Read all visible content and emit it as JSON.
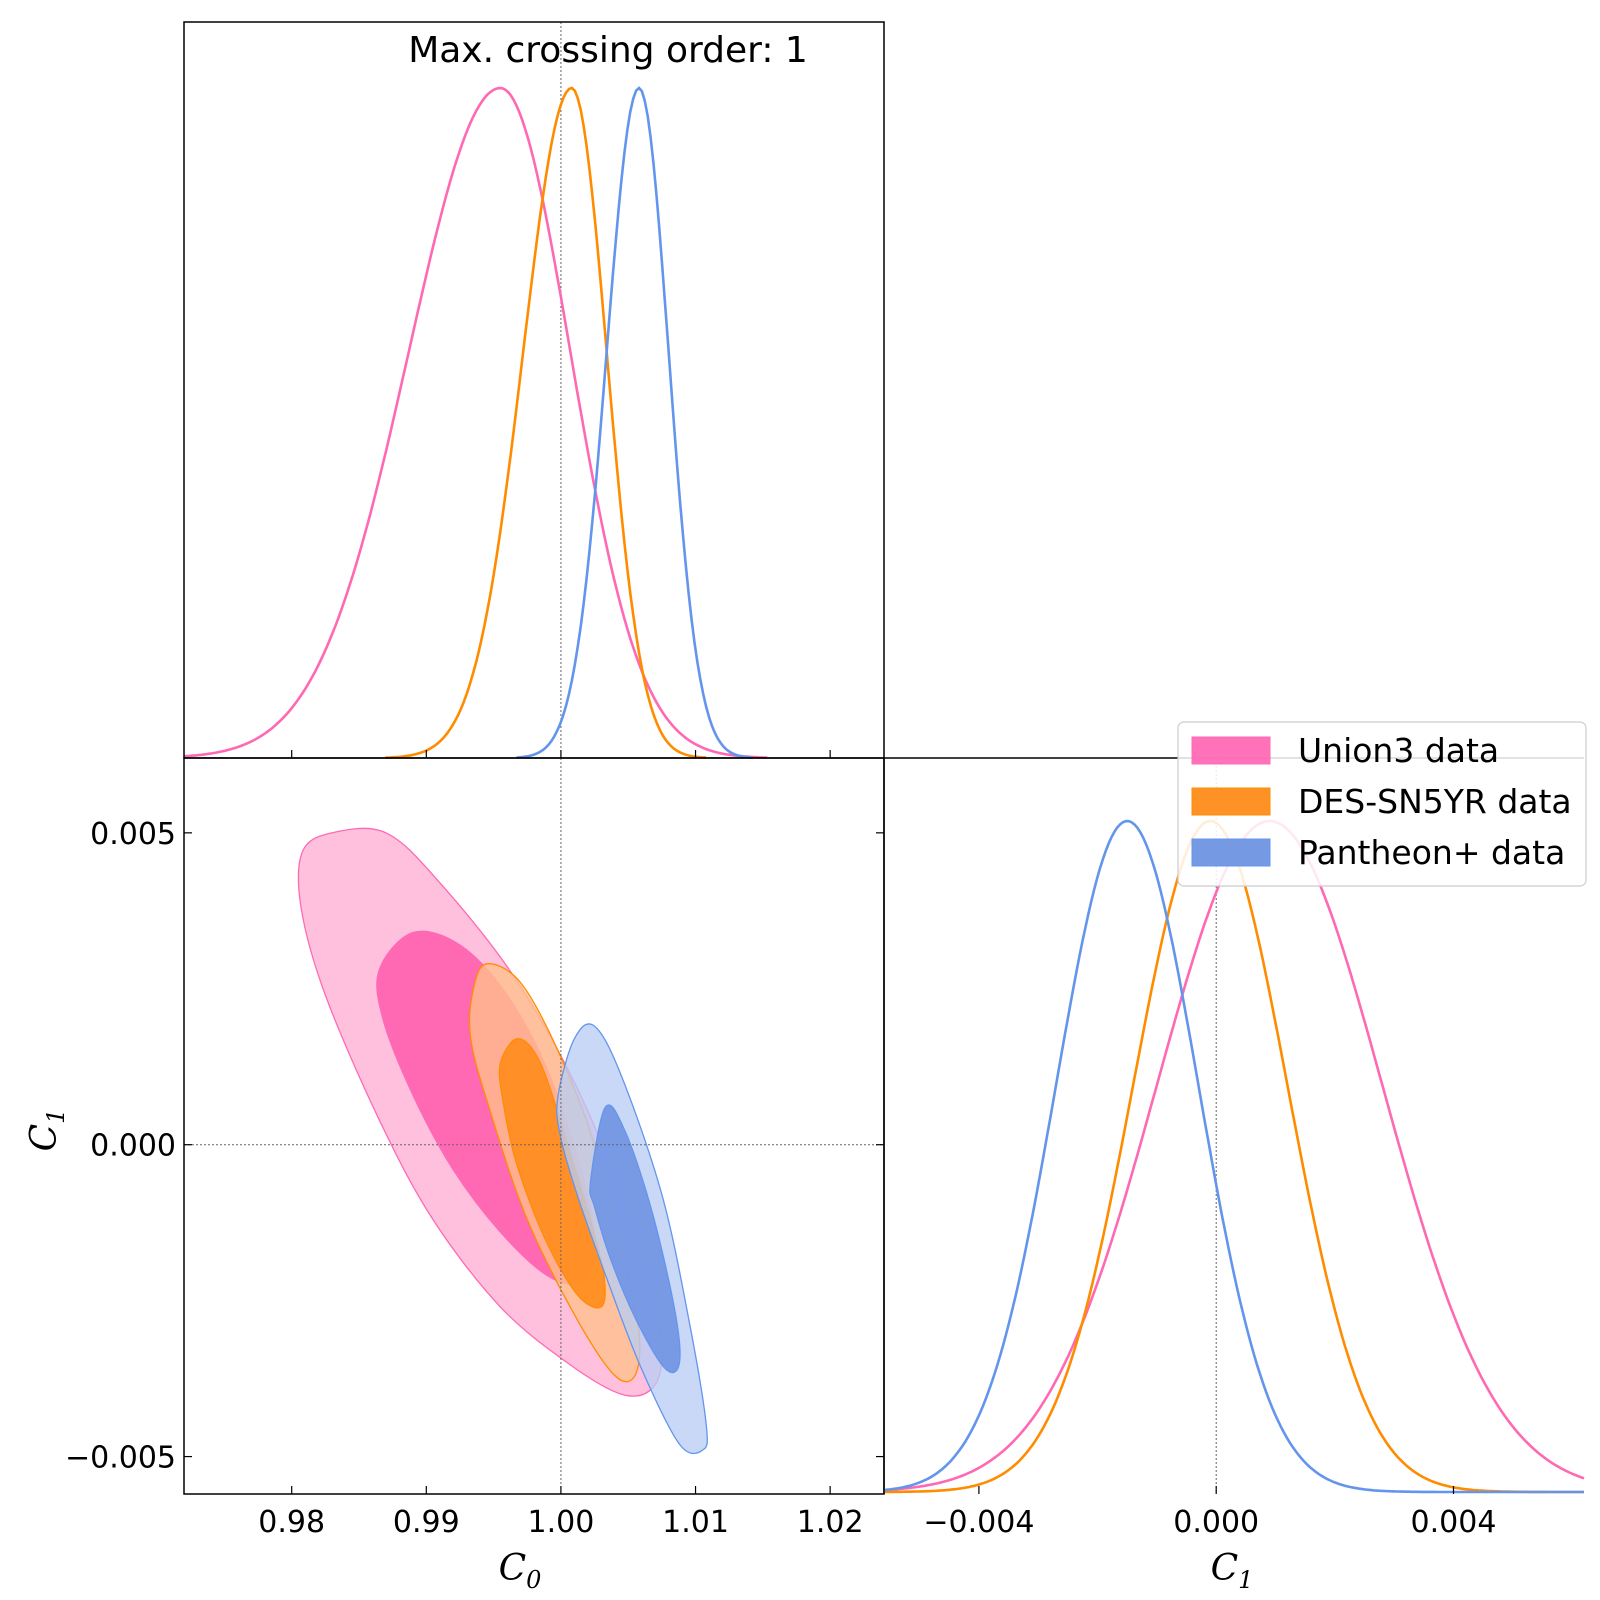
{
  "chart_data": {
    "type": "triangle-corner-plot",
    "title": "Max. crossing order: 1",
    "parameters": [
      "C_0",
      "C_1"
    ],
    "x_axis_labels": {
      "C_0": "C",
      "C_0_sub": "0",
      "C_1": "C",
      "C_1_sub": "1"
    },
    "y_axis_label": {
      "text": "C",
      "sub": "1"
    },
    "reference_values": {
      "C_0": 1.0,
      "C_1": 0.0
    },
    "ranges": {
      "C_0": [
        0.972,
        1.024
      ],
      "C_1": [
        -0.0056,
        0.0062
      ]
    },
    "ticks": {
      "C_0": [
        {
          "v": 0.98,
          "label": "0.98"
        },
        {
          "v": 0.99,
          "label": "0.99"
        },
        {
          "v": 1.0,
          "label": "1.00"
        },
        {
          "v": 1.01,
          "label": "1.01"
        },
        {
          "v": 1.02,
          "label": "1.02"
        }
      ],
      "C_1_y": [
        {
          "v": 0.005,
          "label": "0.005"
        },
        {
          "v": 0.0,
          "label": "0.000"
        },
        {
          "v": -0.005,
          "label": "−0.005"
        }
      ],
      "C_1_x": [
        {
          "v": -0.004,
          "label": "−0.004"
        },
        {
          "v": 0.0,
          "label": "0.000"
        },
        {
          "v": 0.004,
          "label": "0.004"
        }
      ]
    },
    "series": [
      {
        "name": "Union3 data",
        "legend_label": "Union3 data",
        "color": "#ff69b4",
        "fill_inner": "#ff69b4",
        "fill_outer": "#ffc0de",
        "C_0": {
          "mean": 0.9955,
          "sigma_left": 0.0068,
          "sigma_right": 0.0052
        },
        "C_1": {
          "mean": 0.0009,
          "sigma": 0.0019
        },
        "contour_inner": [
          [
            0.9865,
            0.0028
          ],
          [
            0.989,
            0.0034
          ],
          [
            0.9925,
            0.0032
          ],
          [
            0.996,
            0.0024
          ],
          [
            0.999,
            0.0012
          ],
          [
            1.0015,
            -0.0004
          ],
          [
            1.0025,
            -0.0016
          ],
          [
            1.0015,
            -0.0022
          ],
          [
            0.999,
            -0.0021
          ],
          [
            0.9955,
            -0.0014
          ],
          [
            0.992,
            -0.0004
          ],
          [
            0.989,
            0.0008
          ],
          [
            0.9868,
            0.002
          ]
        ],
        "contour_outer": [
          [
            0.9808,
            0.0047
          ],
          [
            0.983,
            0.005
          ],
          [
            0.987,
            0.005
          ],
          [
            0.991,
            0.0042
          ],
          [
            0.9965,
            0.0027
          ],
          [
            1.001,
            0.001
          ],
          [
            1.0045,
            -0.0008
          ],
          [
            1.0065,
            -0.0022
          ],
          [
            1.0075,
            -0.0033
          ],
          [
            1.0068,
            -0.0039
          ],
          [
            1.0045,
            -0.004
          ],
          [
            1.0005,
            -0.0035
          ],
          [
            0.9955,
            -0.0026
          ],
          [
            0.9905,
            -0.0012
          ],
          [
            0.9865,
            0.0004
          ],
          [
            0.9825,
            0.0024
          ],
          [
            0.9807,
            0.0038
          ]
        ]
      },
      {
        "name": "DES-SN5YR data",
        "legend_label": "DES-SN5YR data",
        "color": "#ff8c00",
        "fill_inner": "#ff8c1a",
        "fill_outer": "#ffc28a",
        "C_0": {
          "mean": 1.0008,
          "sigma_left": 0.0036,
          "sigma_right": 0.0026
        },
        "C_1": {
          "mean": -0.0001,
          "sigma": 0.0013
        },
        "contour_inner": [
          [
            0.9955,
            0.0013
          ],
          [
            0.9968,
            0.0017
          ],
          [
            0.9985,
            0.0013
          ],
          [
            1.0005,
            0.0
          ],
          [
            1.0022,
            -0.0012
          ],
          [
            1.0032,
            -0.0021
          ],
          [
            1.003,
            -0.0026
          ],
          [
            1.0012,
            -0.0024
          ],
          [
            0.9988,
            -0.0015
          ],
          [
            0.9967,
            -0.0003
          ],
          [
            0.9957,
            0.0007
          ]
        ],
        "contour_outer": [
          [
            0.9935,
            0.0025
          ],
          [
            0.9945,
            0.0029
          ],
          [
            0.997,
            0.0026
          ],
          [
            0.9998,
            0.0015
          ],
          [
            1.0025,
            0.0
          ],
          [
            1.0045,
            -0.0017
          ],
          [
            1.0058,
            -0.003
          ],
          [
            1.0055,
            -0.0037
          ],
          [
            1.004,
            -0.0037
          ],
          [
            1.0012,
            -0.0028
          ],
          [
            0.9975,
            -0.0012
          ],
          [
            0.9948,
            0.0005
          ],
          [
            0.9933,
            0.0017
          ]
        ]
      },
      {
        "name": "Pantheon+ data",
        "legend_label": "Pantheon+ data",
        "color": "#6495ed",
        "fill_inner": "#6f93e3",
        "fill_outer": "#b9cdf3",
        "C_0": {
          "mean": 1.0058,
          "sigma_left": 0.0024,
          "sigma_right": 0.0022
        },
        "C_1": {
          "mean": -0.0015,
          "sigma": 0.0012
        },
        "contour_inner": [
          [
            1.0022,
            -0.0006
          ],
          [
            1.0033,
            0.0006
          ],
          [
            1.0048,
            0.0002
          ],
          [
            1.0068,
            -0.0011
          ],
          [
            1.0085,
            -0.0027
          ],
          [
            1.0088,
            -0.0035
          ],
          [
            1.0078,
            -0.0036
          ],
          [
            1.0058,
            -0.0029
          ],
          [
            1.0038,
            -0.0019
          ],
          [
            1.0025,
            -0.001
          ]
        ],
        "contour_outer": [
          [
            0.9998,
            0.0008
          ],
          [
            1.001,
            0.0017
          ],
          [
            1.0025,
            0.0019
          ],
          [
            1.0045,
            0.0011
          ],
          [
            1.0075,
            -0.0008
          ],
          [
            1.0095,
            -0.0028
          ],
          [
            1.0108,
            -0.0045
          ],
          [
            1.0105,
            -0.0049
          ],
          [
            1.0088,
            -0.0048
          ],
          [
            1.006,
            -0.0036
          ],
          [
            1.0035,
            -0.0022
          ],
          [
            1.0012,
            -0.0008
          ],
          [
            0.9999,
            0.0002
          ]
        ]
      }
    ],
    "legend_position": "right, beside bottom-right panel top"
  }
}
